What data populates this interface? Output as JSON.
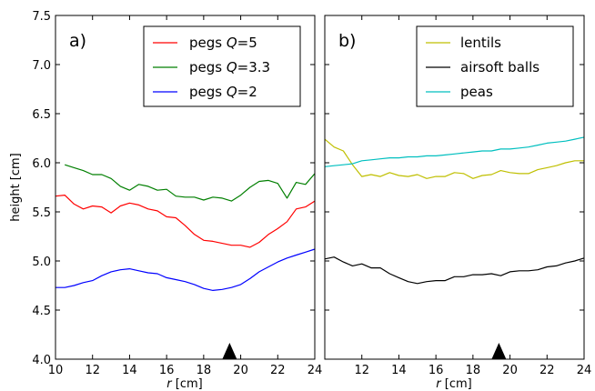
{
  "chart_data": [
    {
      "type": "line",
      "panel_label": "a)",
      "xlabel_var": "r",
      "xlabel_unit": " [cm]",
      "ylabel": "height [cm]",
      "xlim": [
        10,
        24
      ],
      "ylim": [
        4.0,
        7.5
      ],
      "xticks": [
        "10",
        "12",
        "14",
        "16",
        "18",
        "20",
        "22",
        "24"
      ],
      "yticks": [
        "4.0",
        "4.5",
        "5.0",
        "5.5",
        "6.0",
        "6.5",
        "7.0",
        "7.5"
      ],
      "legend": "top-right",
      "marker_x": 19.4,
      "series": [
        {
          "name_prefix": "pegs ",
          "name_var": "Q",
          "name_value": "=5",
          "color": "#ff0000",
          "x": [
            10.0,
            10.5,
            11.0,
            11.5,
            12.0,
            12.5,
            13.0,
            13.5,
            14.0,
            14.5,
            15.0,
            15.5,
            16.0,
            16.5,
            17.0,
            17.5,
            18.0,
            18.5,
            19.0,
            19.5,
            20.0,
            20.5,
            21.0,
            21.5,
            22.0,
            22.5,
            23.0,
            23.5,
            24.0
          ],
          "y": [
            5.66,
            5.67,
            5.58,
            5.53,
            5.56,
            5.55,
            5.49,
            5.56,
            5.59,
            5.57,
            5.53,
            5.51,
            5.45,
            5.44,
            5.36,
            5.27,
            5.21,
            5.2,
            5.18,
            5.16,
            5.16,
            5.14,
            5.19,
            5.27,
            5.33,
            5.4,
            5.53,
            5.55,
            5.61
          ]
        },
        {
          "name_prefix": "pegs ",
          "name_var": "Q",
          "name_value": "=3.3",
          "color": "#007f00",
          "x": [
            10.5,
            11.0,
            11.5,
            12.0,
            12.5,
            13.0,
            13.5,
            14.0,
            14.5,
            15.0,
            15.5,
            16.0,
            16.5,
            17.0,
            17.5,
            18.0,
            18.5,
            19.0,
            19.5,
            20.0,
            20.5,
            21.0,
            21.5,
            22.0,
            22.5,
            23.0,
            23.5,
            24.0
          ],
          "y": [
            5.98,
            5.95,
            5.92,
            5.88,
            5.88,
            5.84,
            5.76,
            5.72,
            5.78,
            5.76,
            5.72,
            5.73,
            5.66,
            5.65,
            5.65,
            5.62,
            5.65,
            5.64,
            5.61,
            5.67,
            5.75,
            5.81,
            5.82,
            5.79,
            5.64,
            5.8,
            5.78,
            5.89
          ]
        },
        {
          "name_prefix": "pegs ",
          "name_var": "Q",
          "name_value": "=2",
          "color": "#0000ff",
          "x": [
            10.0,
            10.5,
            11.0,
            11.5,
            12.0,
            12.5,
            13.0,
            13.5,
            14.0,
            14.5,
            15.0,
            15.5,
            16.0,
            16.5,
            17.0,
            17.5,
            18.0,
            18.5,
            19.0,
            19.5,
            20.0,
            20.5,
            21.0,
            21.5,
            22.0,
            22.5,
            23.0,
            23.5,
            24.0
          ],
          "y": [
            4.73,
            4.73,
            4.75,
            4.78,
            4.8,
            4.85,
            4.89,
            4.91,
            4.92,
            4.9,
            4.88,
            4.87,
            4.83,
            4.81,
            4.79,
            4.76,
            4.72,
            4.7,
            4.71,
            4.73,
            4.76,
            4.82,
            4.89,
            4.94,
            4.99,
            5.03,
            5.06,
            5.09,
            5.12
          ]
        }
      ]
    },
    {
      "type": "line",
      "panel_label": "b)",
      "xlabel_var": "r",
      "xlabel_unit": " [cm]",
      "xlim": [
        10,
        24
      ],
      "ylim": [
        4.0,
        7.5
      ],
      "xticks": [
        "12",
        "14",
        "16",
        "18",
        "20",
        "22",
        "24"
      ],
      "legend": "top-right",
      "marker_x": 19.4,
      "series": [
        {
          "name": "lentils",
          "color": "#bfbf00",
          "x": [
            10.0,
            10.5,
            11.0,
            11.5,
            12.0,
            12.5,
            13.0,
            13.5,
            14.0,
            14.5,
            15.0,
            15.5,
            16.0,
            16.5,
            17.0,
            17.5,
            18.0,
            18.5,
            19.0,
            19.5,
            20.0,
            20.5,
            21.0,
            21.5,
            22.0,
            22.5,
            23.0,
            23.5,
            24.0
          ],
          "y": [
            6.24,
            6.16,
            6.12,
            5.98,
            5.86,
            5.88,
            5.86,
            5.9,
            5.87,
            5.86,
            5.88,
            5.84,
            5.86,
            5.86,
            5.9,
            5.89,
            5.84,
            5.87,
            5.88,
            5.92,
            5.9,
            5.89,
            5.89,
            5.93,
            5.95,
            5.97,
            6.0,
            6.02,
            6.02
          ]
        },
        {
          "name": "airsoft balls",
          "color": "#000000",
          "x": [
            10.0,
            10.5,
            11.0,
            11.5,
            12.0,
            12.5,
            13.0,
            13.5,
            14.0,
            14.5,
            15.0,
            15.5,
            16.0,
            16.5,
            17.0,
            17.5,
            18.0,
            18.5,
            19.0,
            19.5,
            20.0,
            20.5,
            21.0,
            21.5,
            22.0,
            22.5,
            23.0,
            23.5,
            24.0
          ],
          "y": [
            5.02,
            5.04,
            4.99,
            4.95,
            4.97,
            4.93,
            4.93,
            4.87,
            4.83,
            4.79,
            4.77,
            4.79,
            4.8,
            4.8,
            4.84,
            4.84,
            4.86,
            4.86,
            4.87,
            4.85,
            4.89,
            4.9,
            4.9,
            4.91,
            4.94,
            4.95,
            4.98,
            5.0,
            5.03
          ]
        },
        {
          "name": "peas",
          "color": "#00bfbf",
          "x": [
            10.0,
            10.5,
            11.0,
            11.5,
            12.0,
            12.5,
            13.0,
            13.5,
            14.0,
            14.5,
            15.0,
            15.5,
            16.0,
            16.5,
            17.0,
            17.5,
            18.0,
            18.5,
            19.0,
            19.5,
            20.0,
            20.5,
            21.0,
            21.5,
            22.0,
            22.5,
            23.0,
            23.5,
            24.0
          ],
          "y": [
            5.96,
            5.97,
            5.98,
            5.99,
            6.02,
            6.03,
            6.04,
            6.05,
            6.05,
            6.06,
            6.06,
            6.07,
            6.07,
            6.08,
            6.09,
            6.1,
            6.11,
            6.12,
            6.12,
            6.14,
            6.14,
            6.15,
            6.16,
            6.18,
            6.2,
            6.21,
            6.22,
            6.24,
            6.26
          ]
        }
      ]
    }
  ]
}
